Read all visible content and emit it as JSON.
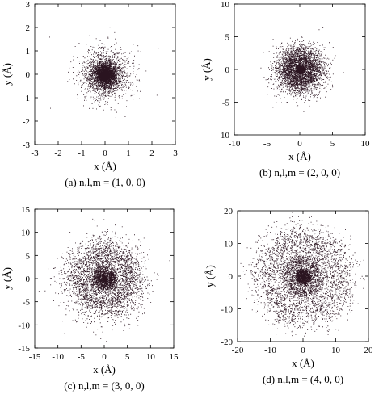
{
  "chart_data": [
    {
      "type": "scatter",
      "caption": "(a) n,l,m = (1, 0, 0)",
      "xlabel": "x (Å)",
      "ylabel": "y (Å)",
      "xlim": [
        -3,
        3
      ],
      "ylim": [
        -3,
        3
      ],
      "xticks": [
        "-3",
        "-2",
        "-1",
        "0",
        "1",
        "2",
        "3"
      ],
      "yticks": [
        "-3",
        "-2",
        "-1",
        "0",
        "1",
        "2",
        "3"
      ],
      "xtick_values": [
        -3,
        -2,
        -1,
        0,
        1,
        2,
        3
      ],
      "ytick_values": [
        -3,
        -2,
        -1,
        0,
        1,
        2,
        3
      ],
      "point_color": "#2a1420",
      "quantum_numbers": {
        "n": 1,
        "l": 0,
        "m": 0
      },
      "grid": false
    },
    {
      "type": "scatter",
      "caption": "(b) n,l,m = (2, 0, 0)",
      "xlabel": "x (Å)",
      "ylabel": "y (Å)",
      "xlim": [
        -10,
        10
      ],
      "ylim": [
        -10,
        10
      ],
      "xticks": [
        "-10",
        "-5",
        "0",
        "5",
        "10"
      ],
      "yticks": [
        "-10",
        "-5",
        "0",
        "5",
        "10"
      ],
      "xtick_values": [
        -10,
        -5,
        0,
        5,
        10
      ],
      "ytick_values": [
        -10,
        -5,
        0,
        5,
        10
      ],
      "point_color": "#2a1420",
      "quantum_numbers": {
        "n": 2,
        "l": 0,
        "m": 0
      },
      "grid": false
    },
    {
      "type": "scatter",
      "caption": "(c) n,l,m = (3, 0, 0)",
      "xlabel": "x (Å)",
      "ylabel": "y (Å)",
      "xlim": [
        -15,
        15
      ],
      "ylim": [
        -15,
        15
      ],
      "xticks": [
        "-15",
        "-10",
        "-5",
        "0",
        "5",
        "10",
        "15"
      ],
      "yticks": [
        "-15",
        "-10",
        "-5",
        "0",
        "5",
        "10",
        "15"
      ],
      "xtick_values": [
        -15,
        -10,
        -5,
        0,
        5,
        10,
        15
      ],
      "ytick_values": [
        -15,
        -10,
        -5,
        0,
        5,
        10,
        15
      ],
      "point_color": "#2a1420",
      "quantum_numbers": {
        "n": 3,
        "l": 0,
        "m": 0
      },
      "grid": false
    },
    {
      "type": "scatter",
      "caption": "(d) n,l,m = (4, 0, 0)",
      "xlabel": "x (Å)",
      "ylabel": "y (Å)",
      "xlim": [
        -20,
        20
      ],
      "ylim": [
        -20,
        20
      ],
      "xticks": [
        "-20",
        "-10",
        "0",
        "10",
        "20"
      ],
      "yticks": [
        "-20",
        "-10",
        "0",
        "10",
        "20"
      ],
      "xtick_values": [
        -20,
        -10,
        0,
        10,
        20
      ],
      "ytick_values": [
        -20,
        -10,
        0,
        10,
        20
      ],
      "point_color": "#2a1420",
      "quantum_numbers": {
        "n": 4,
        "l": 0,
        "m": 0
      },
      "grid": false
    }
  ]
}
